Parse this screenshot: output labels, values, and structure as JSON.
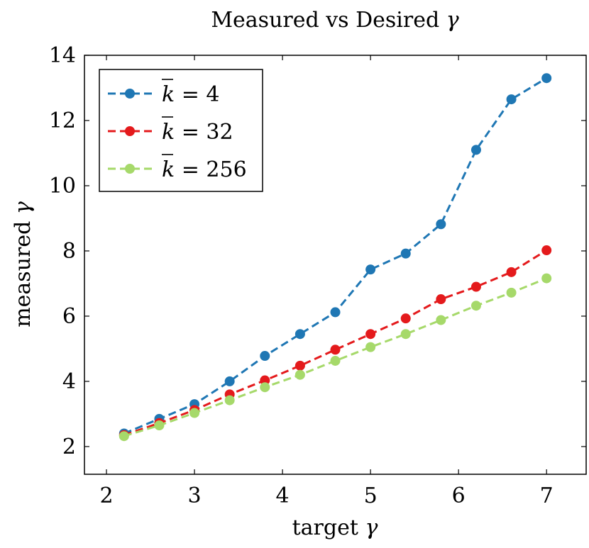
{
  "chart_data": {
    "type": "line",
    "title": "Measured vs Desired γ",
    "xlabel": "target γ",
    "ylabel": "measured γ",
    "xlim": [
      1.75,
      7.45
    ],
    "ylim": [
      1.15,
      14
    ],
    "xticks": [
      2,
      3,
      4,
      5,
      6,
      7
    ],
    "yticks": [
      2,
      4,
      6,
      8,
      10,
      12,
      14
    ],
    "x": [
      2.2,
      2.6,
      3.0,
      3.4,
      3.8,
      4.2,
      4.6,
      5.0,
      5.4,
      5.8,
      6.2,
      6.6,
      7.0
    ],
    "legend_position": "top-left",
    "grid": false,
    "series": [
      {
        "name": "k̄ = 4",
        "k_value": "4",
        "color": "#1f77b4",
        "values": [
          2.4,
          2.85,
          3.3,
          4.0,
          4.78,
          5.45,
          6.12,
          7.43,
          7.92,
          8.82,
          11.1,
          12.65,
          13.3
        ]
      },
      {
        "name": "k̄ = 32",
        "k_value": "32",
        "color": "#e41a1c",
        "values": [
          2.35,
          2.72,
          3.12,
          3.6,
          4.03,
          4.48,
          4.97,
          5.45,
          5.93,
          6.52,
          6.9,
          7.35,
          8.02
        ]
      },
      {
        "name": "k̄ = 256",
        "k_value": "256",
        "color": "#a6d96a",
        "values": [
          2.32,
          2.65,
          3.03,
          3.42,
          3.82,
          4.2,
          4.63,
          5.05,
          5.45,
          5.88,
          6.32,
          6.72,
          7.16
        ]
      }
    ]
  }
}
